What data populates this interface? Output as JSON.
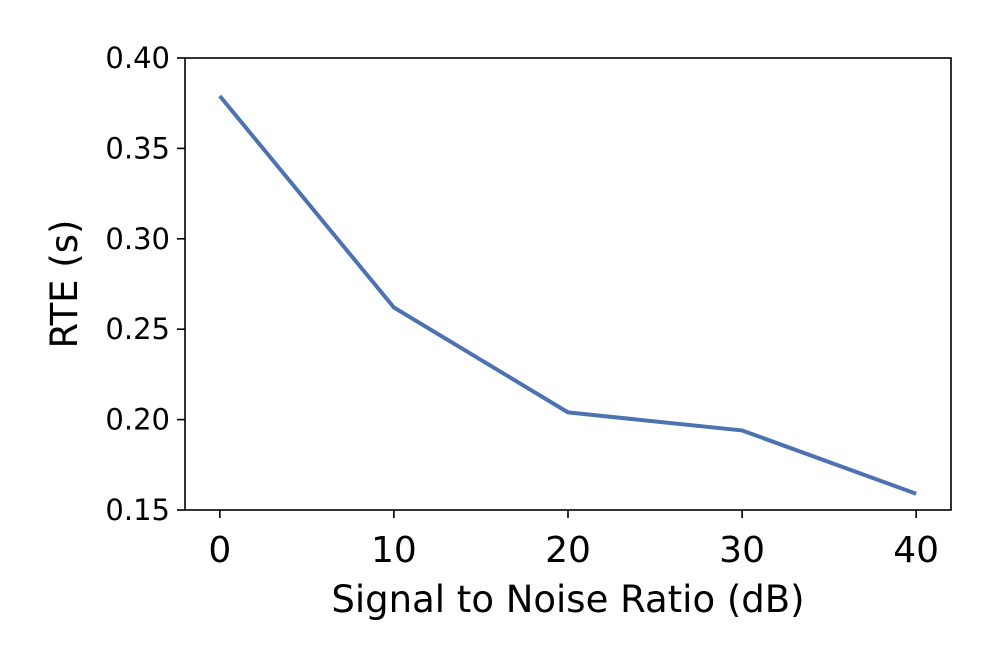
{
  "chart_data": {
    "type": "line",
    "title": "",
    "xlabel": "Signal to Noise Ratio (dB)",
    "ylabel": "RTE (s)",
    "x": [
      0,
      10,
      20,
      30,
      40
    ],
    "x_ticks": [
      "0",
      "10",
      "20",
      "30",
      "40"
    ],
    "y_ticks": [
      "0.15",
      "0.20",
      "0.25",
      "0.30",
      "0.35",
      "0.40"
    ],
    "xlim": [
      -2,
      42
    ],
    "ylim": [
      0.15,
      0.4
    ],
    "grid": false,
    "series": [
      {
        "values": [
          0.379,
          0.262,
          0.204,
          0.194,
          0.159
        ],
        "color": "#4c72b0"
      }
    ]
  }
}
